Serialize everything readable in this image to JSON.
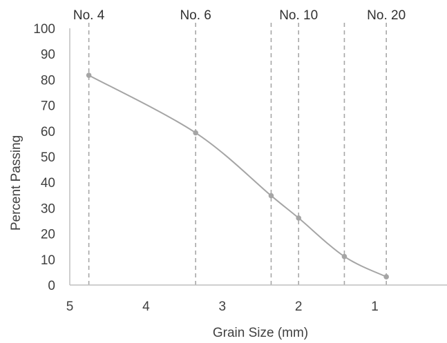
{
  "chart_data": {
    "type": "line",
    "xlabel": "Grain Size (mm)",
    "ylabel": "Percent Passing",
    "xlim": [
      5,
      0
    ],
    "ylim": [
      0,
      100
    ],
    "x_ticks": [
      5,
      4,
      3,
      2,
      1
    ],
    "y_ticks": [
      0,
      10,
      20,
      30,
      40,
      50,
      60,
      70,
      80,
      90,
      100
    ],
    "grid": false,
    "series": [
      {
        "x": [
          4.75,
          3.35,
          2.36,
          2.0,
          1.4,
          0.85
        ],
        "y": [
          81.7,
          59.3,
          34.8,
          26.1,
          11.1,
          3.2
        ]
      }
    ],
    "reference_lines": [
      {
        "label": "No. 4",
        "x": 4.75,
        "show_label": true
      },
      {
        "label": "No. 6",
        "x": 3.35,
        "show_label": true
      },
      {
        "label": "",
        "x": 2.36,
        "show_label": false
      },
      {
        "label": "No. 10",
        "x": 2.0,
        "show_label": true
      },
      {
        "label": "",
        "x": 1.4,
        "show_label": false
      },
      {
        "label": "No. 20",
        "x": 0.85,
        "show_label": true
      }
    ]
  }
}
